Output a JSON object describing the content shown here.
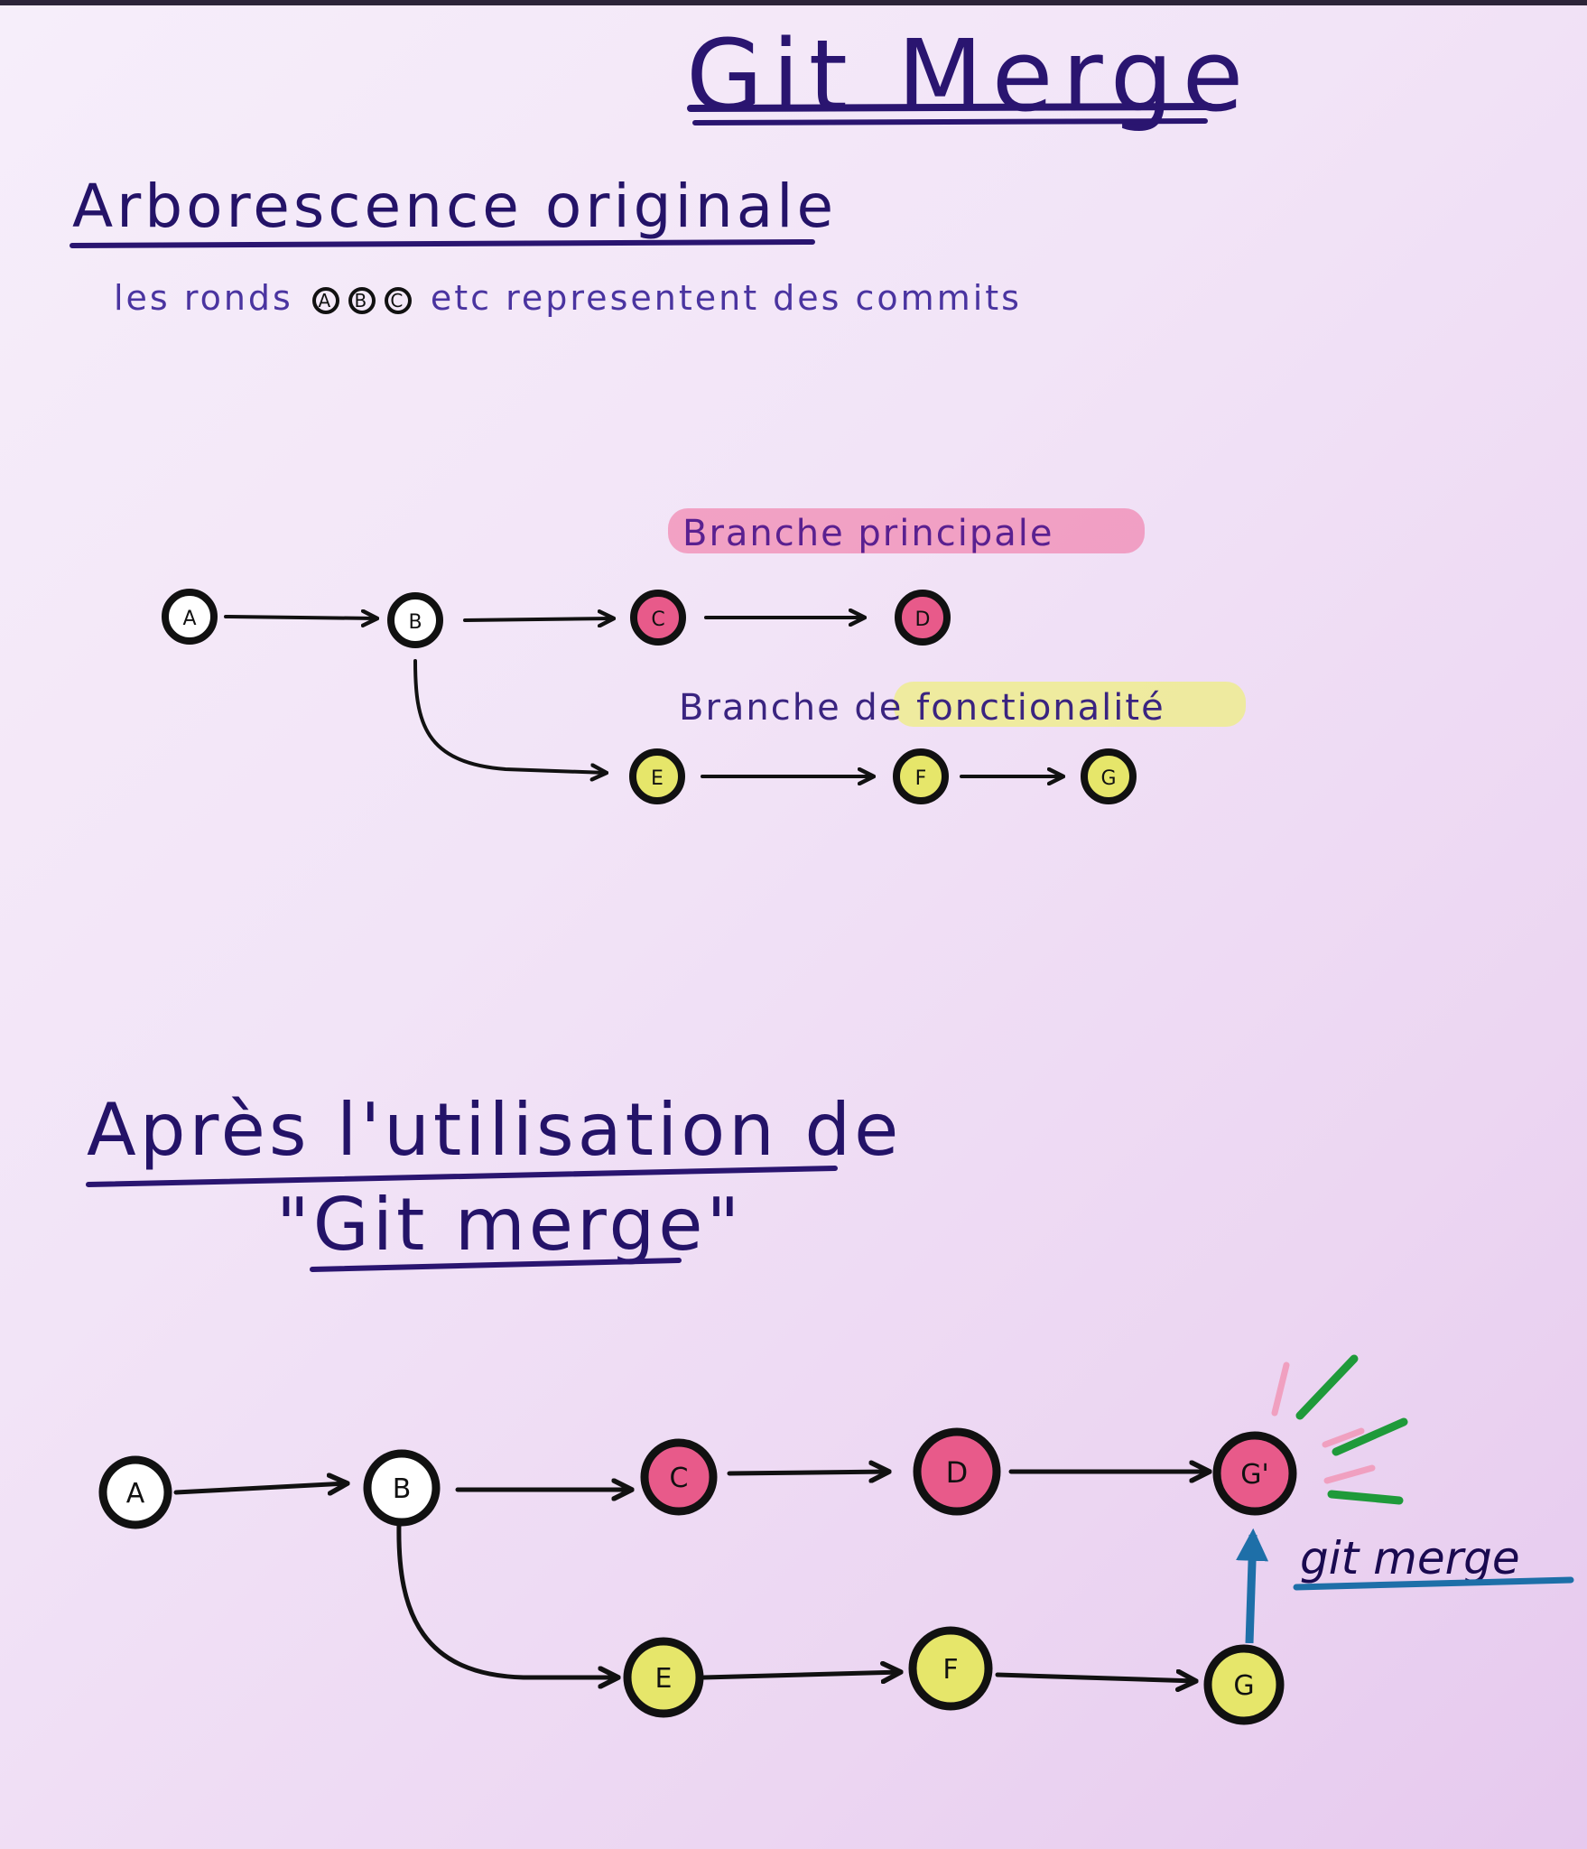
{
  "title": "Git Merge",
  "section1": {
    "heading": "Arborescence originale",
    "note_prefix": "les ronds",
    "note_circles": [
      "A",
      "B",
      "C"
    ],
    "note_suffix": "etc representent des commits",
    "labels": {
      "main": "Branche principale",
      "feature": "Branche de fonctionalité"
    },
    "commits": [
      {
        "id": "A",
        "color": "#ffffff"
      },
      {
        "id": "B",
        "color": "#ffffff"
      },
      {
        "id": "C",
        "color": "#e85a8a"
      },
      {
        "id": "D",
        "color": "#e85a8a"
      },
      {
        "id": "E",
        "color": "#e6e66a"
      },
      {
        "id": "F",
        "color": "#e6e66a"
      },
      {
        "id": "G",
        "color": "#e6e66a"
      }
    ]
  },
  "section2": {
    "heading_line1": "Après l'utilisation de",
    "heading_line2": "\"Git merge\"",
    "merge_label": "git merge",
    "commits": [
      {
        "id": "A",
        "color": "#ffffff"
      },
      {
        "id": "B",
        "color": "#ffffff"
      },
      {
        "id": "C",
        "color": "#e85a8a"
      },
      {
        "id": "D",
        "color": "#e85a8a"
      },
      {
        "id": "G'",
        "color": "#e85a8a"
      },
      {
        "id": "E",
        "color": "#e6e66a"
      },
      {
        "id": "F",
        "color": "#e6e66a"
      },
      {
        "id": "G",
        "color": "#e6e66a"
      }
    ]
  },
  "colors": {
    "ink": "#241368",
    "main_branch": "#e85a8a",
    "feature_branch": "#e6e66a",
    "merge_arrow": "#1e6fa8",
    "spark_green": "#1f9a3a",
    "spark_pink": "#f0a0c0",
    "highlight_pink": "#f06a9a",
    "highlight_yellow": "#eef07a"
  }
}
